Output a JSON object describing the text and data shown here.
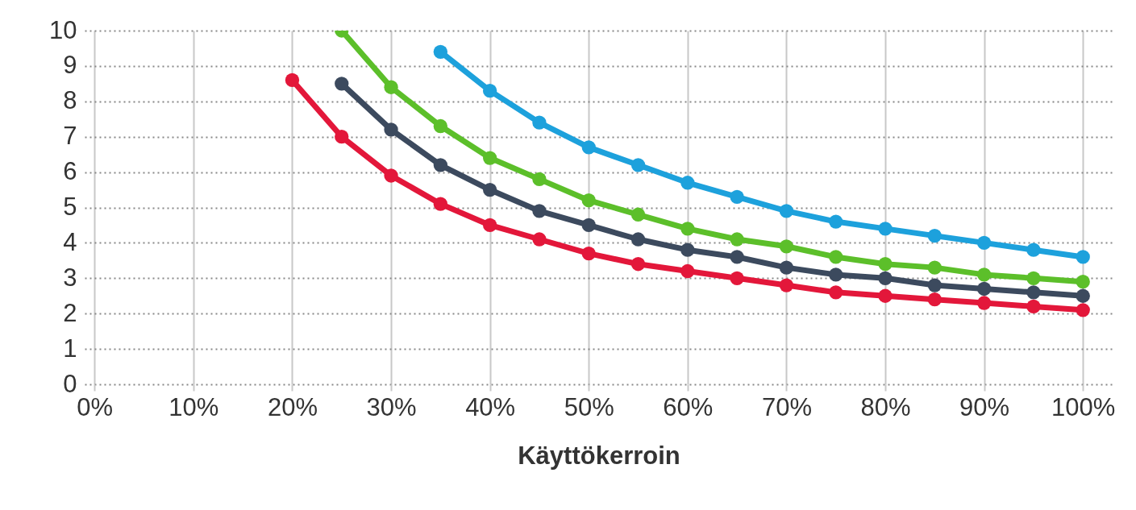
{
  "chart_data": {
    "type": "line",
    "xlabel": "Käyttökerroin",
    "x": [
      20,
      25,
      30,
      35,
      40,
      45,
      50,
      55,
      60,
      65,
      70,
      75,
      80,
      85,
      90,
      95,
      100
    ],
    "series": [
      {
        "color": "#1da1dc",
        "x": [
          35,
          40,
          45,
          50,
          55,
          60,
          65,
          70,
          75,
          80,
          85,
          90,
          95,
          100
        ],
        "values": [
          9.4,
          8.3,
          7.4,
          6.7,
          6.2,
          5.7,
          5.3,
          4.9,
          4.6,
          4.4,
          4.2,
          4.0,
          3.8,
          3.6
        ]
      },
      {
        "color": "#5cbf2a",
        "x": [
          25,
          30,
          35,
          40,
          45,
          50,
          55,
          60,
          65,
          70,
          75,
          80,
          85,
          90,
          95,
          100
        ],
        "values": [
          10,
          8.4,
          7.3,
          6.4,
          5.8,
          5.2,
          4.8,
          4.4,
          4.1,
          3.9,
          3.6,
          3.4,
          3.3,
          3.1,
          3.0,
          2.9
        ]
      },
      {
        "color": "#3c4a5e",
        "x": [
          25,
          30,
          35,
          40,
          45,
          50,
          55,
          60,
          65,
          70,
          75,
          80,
          85,
          90,
          95,
          100
        ],
        "values": [
          8.5,
          7.2,
          6.2,
          5.5,
          4.9,
          4.5,
          4.1,
          3.8,
          3.6,
          3.3,
          3.1,
          3.0,
          2.8,
          2.7,
          2.6,
          2.5
        ]
      },
      {
        "color": "#e3173a",
        "values": [
          8.6,
          7.0,
          5.9,
          5.1,
          4.5,
          4.1,
          3.7,
          3.4,
          3.2,
          3.0,
          2.8,
          2.6,
          2.5,
          2.4,
          2.3,
          2.2,
          2.1
        ]
      }
    ],
    "xlim": [
      -1,
      103
    ],
    "ylim": [
      0,
      10
    ],
    "xticks": [
      {
        "value": 0,
        "label": "0%"
      },
      {
        "value": 10,
        "label": "10%"
      },
      {
        "value": 20,
        "label": "20%"
      },
      {
        "value": 30,
        "label": "30%"
      },
      {
        "value": 40,
        "label": "40%"
      },
      {
        "value": 50,
        "label": "50%"
      },
      {
        "value": 60,
        "label": "60%"
      },
      {
        "value": 70,
        "label": "70%"
      },
      {
        "value": 80,
        "label": "80%"
      },
      {
        "value": 90,
        "label": "90%"
      },
      {
        "value": 100,
        "label": "100%"
      }
    ],
    "yticks": [
      0,
      1,
      2,
      3,
      4,
      5,
      6,
      7,
      8,
      9,
      10
    ],
    "grid": true,
    "marker": "circle",
    "line_style": "solid"
  }
}
